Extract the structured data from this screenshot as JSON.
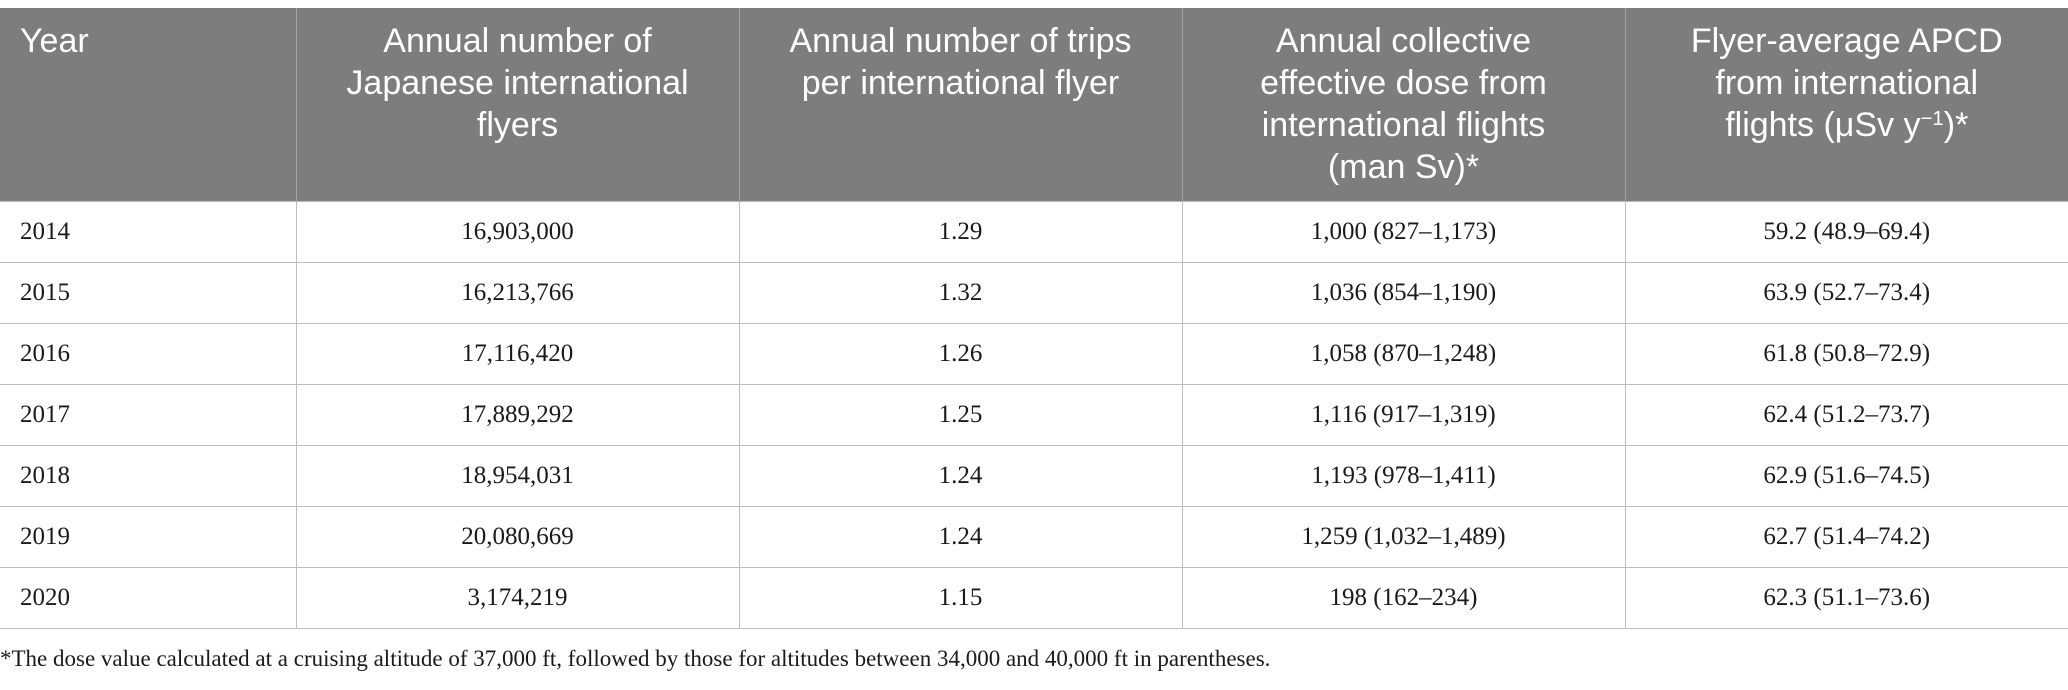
{
  "table": {
    "columns": [
      {
        "lines": [
          "Year"
        ]
      },
      {
        "lines": [
          "Annual number of",
          "Japanese international",
          "flyers"
        ]
      },
      {
        "lines": [
          "Annual number of trips",
          "per international flyer"
        ]
      },
      {
        "lines": [
          "Annual collective",
          "effective dose from",
          "international flights",
          "(man Sv)*"
        ]
      },
      {
        "lines": [
          "Flyer-average APCD",
          "from international"
        ],
        "last_line_pre": "flights (μSv y",
        "last_line_sup": "−1",
        "last_line_post": ")*"
      }
    ],
    "rows": [
      [
        "2014",
        "16,903,000",
        "1.29",
        "1,000 (827–1,173)",
        "59.2 (48.9–69.4)"
      ],
      [
        "2015",
        "16,213,766",
        "1.32",
        "1,036 (854–1,190)",
        "63.9 (52.7–73.4)"
      ],
      [
        "2016",
        "17,116,420",
        "1.26",
        "1,058 (870–1,248)",
        "61.8 (50.8–72.9)"
      ],
      [
        "2017",
        "17,889,292",
        "1.25",
        "1,116 (917–1,319)",
        "62.4 (51.2–73.7)"
      ],
      [
        "2018",
        "18,954,031",
        "1.24",
        "1,193 (978–1,411)",
        "62.9 (51.6–74.5)"
      ],
      [
        "2019",
        "20,080,669",
        "1.24",
        "1,259 (1,032–1,489)",
        "62.7 (51.4–74.2)"
      ],
      [
        "2020",
        "3,174,219",
        "1.15",
        "198 (162–234)",
        "62.3 (51.1–73.6)"
      ]
    ]
  },
  "footnote": "*The dose value calculated at a cruising altitude of 37,000 ft, followed by those for altitudes between 34,000 and 40,000 ft in parentheses.",
  "colors": {
    "header_bg": "#7c7e7b",
    "header_text": "#ffffff",
    "grid": "#bdbdbd"
  }
}
